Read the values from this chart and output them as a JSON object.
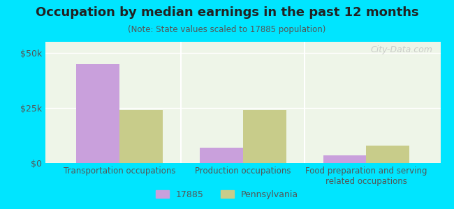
{
  "title": "Occupation by median earnings in the past 12 months",
  "subtitle": "(Note: State values scaled to 17885 population)",
  "categories": [
    "Transportation occupations",
    "Production occupations",
    "Food preparation and serving\nrelated occupations"
  ],
  "series": {
    "17885": [
      45000,
      7000,
      3500
    ],
    "Pennsylvania": [
      24000,
      24000,
      8000
    ]
  },
  "bar_colors": {
    "17885": "#c9a0dc",
    "Pennsylvania": "#c8cc8a"
  },
  "ylim": [
    0,
    55000
  ],
  "yticks": [
    0,
    25000,
    50000
  ],
  "ytick_labels": [
    "$0",
    "$25k",
    "$50k"
  ],
  "background_color": "#00e5ff",
  "plot_bg_top": "#f5fff5",
  "plot_bg_bottom": "#ffffff",
  "bar_width": 0.35,
  "watermark": "City-Data.com",
  "legend_labels": [
    "17885",
    "Pennsylvania"
  ]
}
